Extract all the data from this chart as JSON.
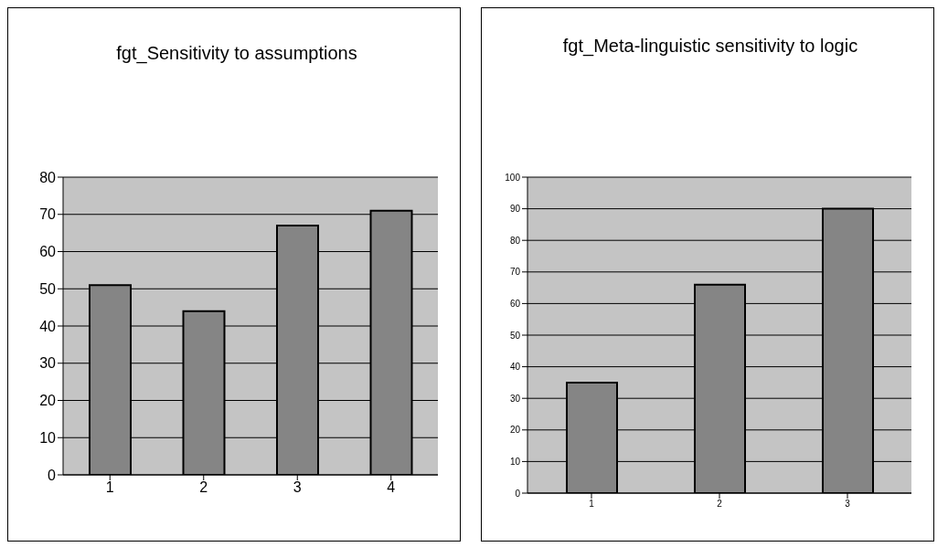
{
  "chart_data": [
    {
      "type": "bar",
      "title": "fgt_Sensitivity to assumptions",
      "categories": [
        "1",
        "2",
        "3",
        "4"
      ],
      "values": [
        51,
        44,
        67,
        71
      ],
      "color": "#858585",
      "ylim": [
        0,
        80
      ],
      "yticks": [
        0,
        10,
        20,
        30,
        40,
        50,
        60,
        70,
        80
      ],
      "grid": "y"
    },
    {
      "type": "bar",
      "title": "fgt_Meta-linguistic sensitivity to logic",
      "categories": [
        "1",
        "2",
        "3"
      ],
      "values": [
        35,
        66,
        90
      ],
      "color": "#858585",
      "ylim": [
        0,
        100
      ],
      "yticks": [
        0,
        10,
        20,
        30,
        40,
        50,
        60,
        70,
        80,
        90,
        100
      ],
      "grid": "y"
    }
  ]
}
